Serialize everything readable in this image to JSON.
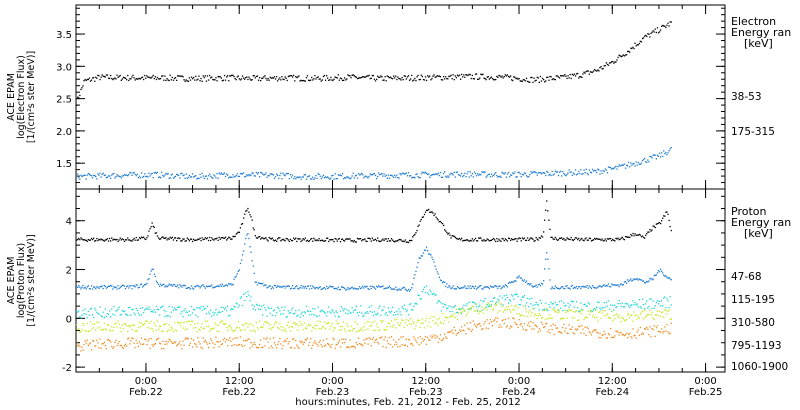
{
  "figure": {
    "xaxis_title": "hours:minutes, Feb. 21, 2012 - Feb. 25, 2012",
    "x_ticks": [
      {
        "hour": 15,
        "time": "",
        "date": ""
      },
      {
        "hour": 24,
        "time": "0:00",
        "date": "Feb.22"
      },
      {
        "hour": 36,
        "time": "12:00",
        "date": "Feb.22"
      },
      {
        "hour": 48,
        "time": "0:00",
        "date": "Feb.23"
      },
      {
        "hour": 60,
        "time": "12:00",
        "date": "Feb.23"
      },
      {
        "hour": 72,
        "time": "0:00",
        "date": "Feb.24"
      },
      {
        "hour": 84,
        "time": "12:00",
        "date": "Feb.24"
      },
      {
        "hour": 96,
        "time": "0:00",
        "date": "Feb.25"
      }
    ],
    "x_minor_step_hours": 3
  },
  "chart_data": [
    {
      "type": "scatter",
      "ylabel": [
        "ACE EPAM",
        "log(Electron Flux)",
        "[1/(cm²s ster MeV)]"
      ],
      "ylim": [
        1.1,
        3.95
      ],
      "yticks": [
        1.5,
        2.0,
        2.5,
        3.0,
        3.5
      ],
      "ytick_labels": [
        "1.5",
        "2.0",
        "2.5",
        "3.0",
        "3.5"
      ],
      "legend_title": [
        "Electron",
        "Energy ran",
        "[keV]"
      ],
      "series": [
        {
          "name": "38-53",
          "color": "#000000",
          "x": [
            15,
            16,
            18,
            22,
            26,
            30,
            34,
            38,
            42,
            46,
            50,
            54,
            58,
            62,
            66,
            70,
            74,
            76,
            78,
            80,
            82,
            84,
            86,
            88,
            90,
            91.5
          ],
          "y": [
            2.45,
            2.78,
            2.84,
            2.83,
            2.83,
            2.82,
            2.83,
            2.82,
            2.83,
            2.82,
            2.84,
            2.82,
            2.83,
            2.84,
            2.85,
            2.84,
            2.8,
            2.82,
            2.84,
            2.88,
            2.95,
            3.08,
            3.25,
            3.45,
            3.58,
            3.68
          ]
        },
        {
          "name": "175-315",
          "color": "#1e7bd2",
          "x": [
            15,
            20,
            25,
            30,
            35,
            40,
            45,
            50,
            55,
            60,
            65,
            70,
            74,
            78,
            82,
            84,
            86,
            88,
            90,
            91.5
          ],
          "y": [
            1.3,
            1.32,
            1.33,
            1.3,
            1.33,
            1.32,
            1.3,
            1.31,
            1.32,
            1.33,
            1.34,
            1.33,
            1.34,
            1.36,
            1.38,
            1.42,
            1.48,
            1.55,
            1.62,
            1.72
          ]
        }
      ]
    },
    {
      "type": "scatter",
      "ylabel": [
        "ACE EPAM",
        "log(Proton Flux)",
        "[1/(cm²s ster MeV)]"
      ],
      "ylim": [
        -2.2,
        5.3
      ],
      "yticks": [
        -2,
        0,
        2,
        4
      ],
      "ytick_labels": [
        "-2",
        "0",
        "2",
        "4"
      ],
      "legend_title": [
        "Proton",
        "Energy ran",
        "[keV]"
      ],
      "series": [
        {
          "name": "47-68",
          "color": "#000000",
          "x": [
            15,
            22,
            24,
            24.7,
            25.5,
            30,
            35,
            36,
            37,
            37.5,
            38,
            40,
            45,
            50,
            55,
            58,
            59,
            60,
            61,
            62,
            63,
            64,
            65,
            70,
            74,
            75,
            75.5,
            76,
            80,
            85,
            87,
            88,
            89,
            90,
            91,
            91.5
          ],
          "y": [
            3.25,
            3.25,
            3.3,
            3.9,
            3.3,
            3.25,
            3.3,
            3.6,
            4.6,
            4.1,
            3.4,
            3.25,
            3.25,
            3.22,
            3.25,
            3.2,
            3.8,
            4.5,
            4.3,
            3.9,
            3.4,
            3.25,
            3.25,
            3.25,
            3.25,
            3.4,
            4.9,
            3.3,
            3.25,
            3.25,
            3.5,
            3.3,
            3.7,
            3.9,
            4.4,
            3.6
          ]
        },
        {
          "name": "115-195",
          "color": "#1e7bd2",
          "x": [
            15,
            22,
            24,
            24.7,
            25.5,
            30,
            35,
            36,
            37,
            38,
            40,
            45,
            50,
            55,
            58,
            59,
            60,
            61,
            62,
            63,
            64,
            66,
            70,
            72,
            74,
            75,
            75.5,
            76,
            80,
            85,
            87,
            88,
            89,
            90,
            91.5
          ],
          "y": [
            1.3,
            1.3,
            1.4,
            2.1,
            1.4,
            1.3,
            1.4,
            2.1,
            3.6,
            1.5,
            1.3,
            1.3,
            1.25,
            1.3,
            1.2,
            2.4,
            2.9,
            2.3,
            1.5,
            1.3,
            1.3,
            1.3,
            1.3,
            1.7,
            1.3,
            1.4,
            2.8,
            1.3,
            1.3,
            1.4,
            1.7,
            1.5,
            1.6,
            2.0,
            1.6
          ]
        },
        {
          "name": "310-580",
          "color": "#1ed6d6",
          "x": [
            15,
            22,
            26,
            30,
            35,
            37,
            38,
            40,
            45,
            50,
            55,
            58,
            59,
            60,
            62,
            64,
            66,
            68,
            70,
            72,
            74,
            76,
            80,
            85,
            88,
            91.5
          ],
          "y": [
            0.25,
            0.3,
            0.3,
            0.3,
            0.3,
            1.0,
            0.4,
            0.3,
            0.3,
            0.3,
            0.35,
            0.4,
            0.9,
            1.3,
            0.5,
            0.4,
            0.5,
            0.65,
            0.8,
            0.8,
            0.6,
            0.55,
            0.5,
            0.55,
            0.6,
            0.7
          ]
        },
        {
          "name": "795-1193",
          "color": "#c8e61e",
          "x": [
            15,
            20,
            25,
            30,
            35,
            40,
            45,
            50,
            55,
            58,
            60,
            62,
            64,
            66,
            68,
            70,
            72,
            74,
            76,
            80,
            85,
            88,
            91.5
          ],
          "y": [
            -0.35,
            -0.3,
            -0.3,
            -0.3,
            -0.3,
            -0.3,
            -0.3,
            -0.3,
            -0.25,
            -0.2,
            -0.15,
            0.0,
            0.2,
            0.4,
            0.5,
            0.45,
            0.35,
            0.25,
            0.2,
            0.15,
            0.1,
            0.15,
            0.2
          ]
        },
        {
          "name": "1060-1900",
          "color": "#f08c1e",
          "x": [
            15,
            20,
            25,
            30,
            35,
            40,
            45,
            50,
            55,
            58,
            60,
            62,
            64,
            66,
            68,
            70,
            72,
            74,
            76,
            80,
            85,
            88,
            91.5
          ],
          "y": [
            -1.1,
            -1.0,
            -1.0,
            -1.0,
            -0.95,
            -1.0,
            -1.0,
            -1.0,
            -0.95,
            -0.9,
            -0.85,
            -0.7,
            -0.5,
            -0.3,
            -0.2,
            -0.15,
            -0.2,
            -0.3,
            -0.4,
            -0.5,
            -0.6,
            -0.55,
            -0.4
          ]
        }
      ]
    }
  ]
}
